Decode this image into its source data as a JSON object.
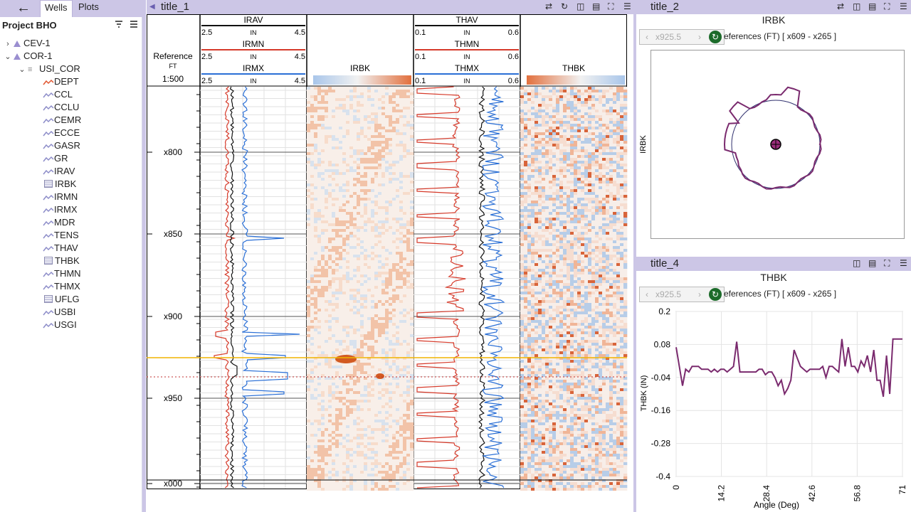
{
  "sidebar": {
    "tabs": {
      "wells": "Wells",
      "plots": "Plots"
    },
    "project": "Project BHO",
    "wells": [
      {
        "name": "CEV-1",
        "expanded": false
      },
      {
        "name": "COR-1",
        "expanded": true
      }
    ],
    "dataset": "USI_COR",
    "curves": [
      {
        "name": "DEPT",
        "type": "curve-red"
      },
      {
        "name": "CCL",
        "type": "curve"
      },
      {
        "name": "CCLU",
        "type": "curve"
      },
      {
        "name": "CEMR",
        "type": "curve"
      },
      {
        "name": "ECCE",
        "type": "curve"
      },
      {
        "name": "GASR",
        "type": "curve"
      },
      {
        "name": "GR",
        "type": "curve"
      },
      {
        "name": "IRAV",
        "type": "curve"
      },
      {
        "name": "IRBK",
        "type": "image"
      },
      {
        "name": "IRMN",
        "type": "curve"
      },
      {
        "name": "IRMX",
        "type": "curve"
      },
      {
        "name": "MDR",
        "type": "curve"
      },
      {
        "name": "TENS",
        "type": "curve"
      },
      {
        "name": "THAV",
        "type": "curve"
      },
      {
        "name": "THBK",
        "type": "image"
      },
      {
        "name": "THMN",
        "type": "curve"
      },
      {
        "name": "THMX",
        "type": "curve"
      },
      {
        "name": "UFLG",
        "type": "image"
      },
      {
        "name": "USBI",
        "type": "curve"
      },
      {
        "name": "USGI",
        "type": "curve"
      }
    ]
  },
  "logplot": {
    "title": "title_1",
    "reference": {
      "label": "Reference",
      "unit": "FT",
      "scale": "1:500"
    },
    "track1_headers": [
      {
        "name": "IRAV",
        "min": "2.5",
        "unit": "IN",
        "max": "4.5",
        "color": "#111111"
      },
      {
        "name": "IRMN",
        "min": "2.5",
        "unit": "IN",
        "max": "4.5",
        "color": "#d63a2a"
      },
      {
        "name": "IRMX",
        "min": "2.5",
        "unit": "IN",
        "max": "4.5",
        "color": "#2a6fd6"
      }
    ],
    "track2_header": "IRBK",
    "track3_headers": [
      {
        "name": "THAV",
        "min": "0.1",
        "unit": "IN",
        "max": "0.6",
        "color": "#111111"
      },
      {
        "name": "THMN",
        "min": "0.1",
        "unit": "IN",
        "max": "0.6",
        "color": "#d63a2a"
      },
      {
        "name": "THMX",
        "min": "0.1",
        "unit": "IN",
        "max": "0.6",
        "color": "#2a6fd6"
      }
    ],
    "track4_header": "THBK",
    "depth_labels": [
      "x800",
      "x850",
      "x900",
      "x950",
      "x000"
    ]
  },
  "polar": {
    "window_title": "title_2",
    "plot_title": "IRBK",
    "nav_value": "x925.5",
    "ref_text": "eferences (FT) [ x609 - x265 ]",
    "axis_label": "IRBK"
  },
  "lineplot": {
    "window_title": "title_4",
    "plot_title": "THBK",
    "nav_value": "x925.5",
    "ref_text": "eferences (FT) [ x609 - x265 ]",
    "chart_data": {
      "type": "line",
      "title": "THBK",
      "xlabel": "Angle (Deg)",
      "ylabel": "THBK (IN)",
      "x_ticks": [
        "0",
        "14.2",
        "28.4",
        "42.6",
        "56.8",
        "71"
      ],
      "y_ticks": [
        "0.2",
        "0.08",
        "-0.04",
        "-0.16",
        "-0.28",
        "-0.4"
      ],
      "xlim": [
        0,
        71
      ],
      "ylim": [
        -0.4,
        0.2
      ],
      "x": [
        0,
        1,
        2,
        3,
        4,
        5,
        6,
        7,
        8,
        9,
        10,
        11,
        12,
        13,
        14,
        15,
        16,
        17,
        18,
        19,
        20,
        21,
        22,
        23,
        24,
        25,
        26,
        27,
        28,
        29,
        30,
        31,
        32,
        33,
        34,
        35,
        36,
        37,
        38,
        39,
        40,
        41,
        42,
        43,
        44,
        45,
        46,
        47,
        48,
        49,
        50,
        51,
        52,
        53,
        54,
        55,
        56,
        57,
        58,
        59,
        60,
        61,
        62,
        63,
        64,
        65,
        66,
        67,
        68,
        69,
        70,
        71
      ],
      "values": [
        0.07,
        0.0,
        -0.07,
        -0.01,
        -0.02,
        0.0,
        0.0,
        0.0,
        -0.01,
        -0.01,
        -0.01,
        -0.02,
        -0.01,
        -0.02,
        -0.01,
        -0.01,
        -0.02,
        -0.01,
        0.0,
        0.09,
        -0.02,
        -0.02,
        -0.02,
        -0.02,
        -0.02,
        -0.02,
        -0.01,
        -0.01,
        -0.03,
        -0.02,
        -0.02,
        -0.04,
        -0.07,
        -0.05,
        -0.1,
        -0.08,
        -0.05,
        0.06,
        0.03,
        0.0,
        -0.01,
        -0.02,
        -0.01,
        -0.01,
        -0.01,
        -0.01,
        0.0,
        -0.04,
        0.0,
        0.0,
        -0.01,
        -0.02,
        0.1,
        0.0,
        0.07,
        0.0,
        0.0,
        -0.02,
        0.02,
        0.0,
        0.04,
        -0.02,
        0.06,
        -0.05,
        -0.05,
        -0.11,
        0.04,
        -0.1,
        0.1,
        0.1,
        0.1,
        0.1
      ]
    }
  }
}
